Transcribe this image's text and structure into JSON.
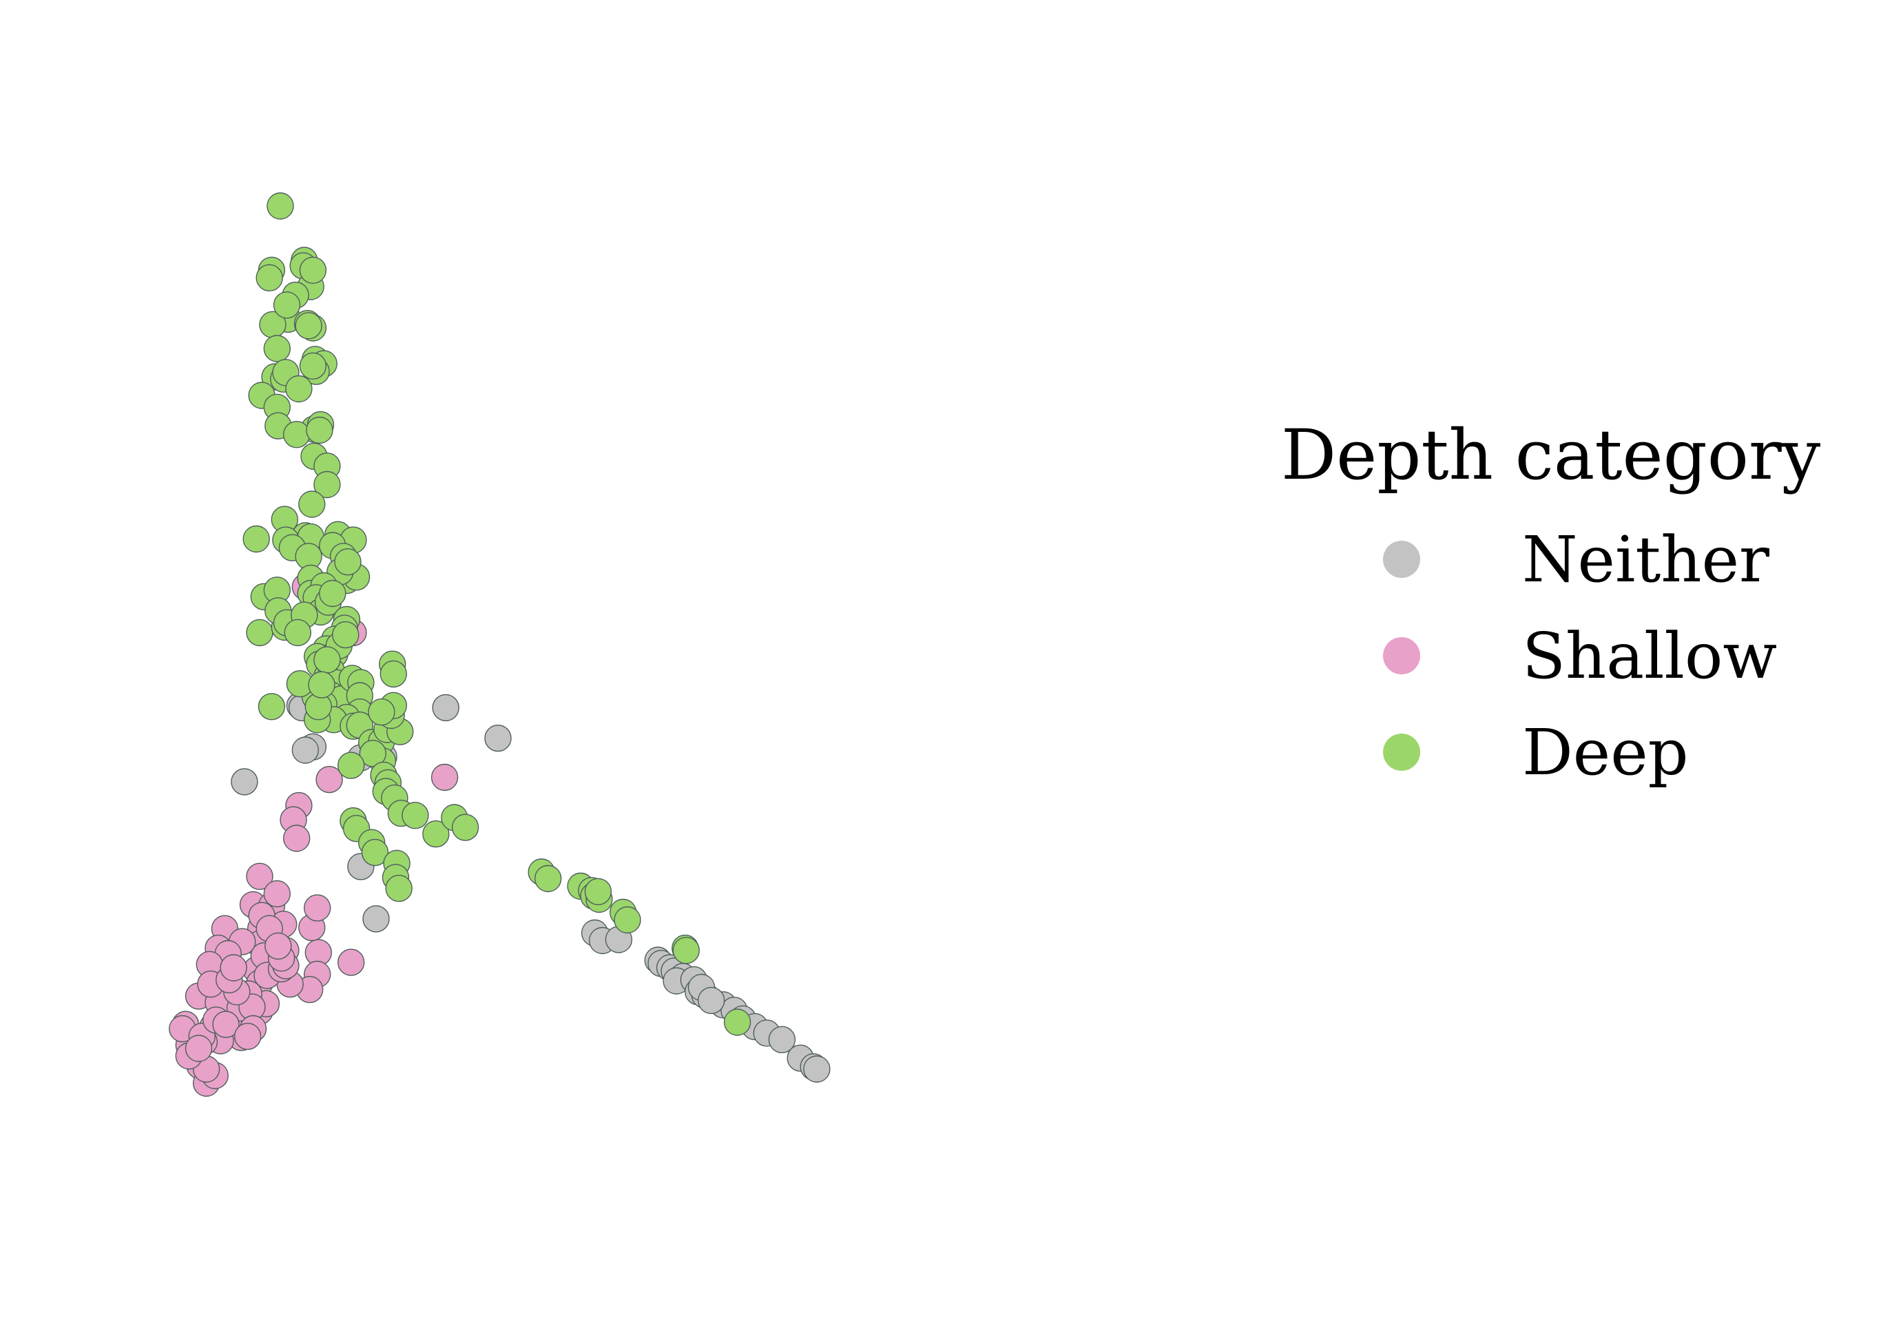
{
  "chart_data": {
    "type": "scatter",
    "title": "",
    "xlabel": "",
    "ylabel": "",
    "axes_visible": false,
    "grid": false,
    "xlim": [
      0,
      1000
    ],
    "ylim": [
      0,
      1000
    ],
    "legend": {
      "title": "Depth category",
      "placement": "center-right",
      "entries": [
        {
          "key": "neither",
          "label": "Neither",
          "color": "#c3c3c3"
        },
        {
          "key": "shallow",
          "label": "Shallow",
          "color": "#e8a1c8"
        },
        {
          "key": "deep",
          "label": "Deep",
          "color": "#9bd66a"
        }
      ]
    },
    "marker_edge_color": "#4d5e5b",
    "series": [
      {
        "key": "neither",
        "name": "Neither",
        "color": "#c3c3c3",
        "points": [
          [
            168,
            453
          ],
          [
            170,
            451
          ],
          [
            180,
            415
          ],
          [
            173,
            412
          ],
          [
            117,
            383
          ],
          [
            224,
            405
          ],
          [
            245,
            406
          ],
          [
            302,
            451
          ],
          [
            350,
            423
          ],
          [
            224,
            305
          ],
          [
            238,
            257
          ],
          [
            439,
            244
          ],
          [
            446,
            237
          ],
          [
            461,
            238
          ],
          [
            497,
            219
          ],
          [
            500,
            216
          ],
          [
            508,
            212
          ],
          [
            512,
            209
          ],
          [
            520,
            204
          ],
          [
            514,
            200
          ],
          [
            530,
            201
          ],
          [
            534,
            190
          ],
          [
            540,
            187
          ],
          [
            557,
            178
          ],
          [
            567,
            173
          ],
          [
            575,
            165
          ],
          [
            586,
            158
          ],
          [
            597,
            152
          ],
          [
            611,
            146
          ],
          [
            628,
            129
          ],
          [
            640,
            121
          ],
          [
            643,
            119
          ],
          [
            537,
            194
          ],
          [
            546,
            182
          ]
        ]
      },
      {
        "key": "shallow",
        "name": "Shallow",
        "color": "#e8a1c8",
        "points": [
          [
            173,
            562
          ],
          [
            217,
            520
          ],
          [
            167,
            361
          ],
          [
            195,
            385
          ],
          [
            301,
            387
          ],
          [
            162,
            348
          ],
          [
            165,
            331
          ],
          [
            131,
            296
          ],
          [
            125,
            270
          ],
          [
            142,
            269
          ],
          [
            153,
            252
          ],
          [
            132,
            248
          ],
          [
            131,
            234
          ],
          [
            155,
            228
          ],
          [
            185,
            226
          ],
          [
            184,
            206
          ],
          [
            177,
            192
          ],
          [
            159,
            197
          ],
          [
            133,
            260
          ],
          [
            128,
            210
          ],
          [
            131,
            198
          ],
          [
            135,
            223
          ],
          [
            138,
            205
          ],
          [
            151,
            211
          ],
          [
            155,
            214
          ],
          [
            151,
            221
          ],
          [
            140,
            248
          ],
          [
            148,
            232
          ],
          [
            99,
            248
          ],
          [
            115,
            236
          ],
          [
            93,
            230
          ],
          [
            102,
            225
          ],
          [
            85,
            215
          ],
          [
            75,
            186
          ],
          [
            63,
            160
          ],
          [
            88,
            158
          ],
          [
            96,
            160
          ],
          [
            106,
            164
          ],
          [
            109,
            176
          ],
          [
            115,
            182
          ],
          [
            131,
            172
          ],
          [
            137,
            179
          ],
          [
            121,
            161
          ],
          [
            114,
            148
          ],
          [
            95,
            145
          ],
          [
            80,
            144
          ],
          [
            66,
            141
          ],
          [
            60,
            156
          ],
          [
            78,
            149
          ],
          [
            76,
            122
          ],
          [
            82,
            106
          ],
          [
            93,
            180
          ],
          [
            117,
            164
          ],
          [
            86,
            197
          ],
          [
            113,
            175
          ],
          [
            121,
            188
          ],
          [
            124,
            176
          ],
          [
            110,
            190
          ],
          [
            103,
            201
          ],
          [
            107,
            212
          ],
          [
            147,
            280
          ],
          [
            179,
            249
          ],
          [
            184,
            267
          ],
          [
            215,
            217
          ],
          [
            91,
            164
          ],
          [
            100,
            160
          ],
          [
            90,
            113
          ],
          [
            82,
            119
          ],
          [
            66,
            131
          ],
          [
            125,
            156
          ],
          [
            120,
            149
          ],
          [
            75,
            138
          ]
        ]
      },
      {
        "key": "deep",
        "name": "Deep",
        "color": "#9bd66a",
        "points": [
          [
            150,
            912
          ],
          [
            172,
            862
          ],
          [
            171,
            857
          ],
          [
            142,
            853
          ],
          [
            140,
            846
          ],
          [
            178,
            838
          ],
          [
            164,
            830
          ],
          [
            157,
            808
          ],
          [
            143,
            803
          ],
          [
            175,
            804
          ],
          [
            156,
            821
          ],
          [
            180,
            800
          ],
          [
            176,
            802
          ],
          [
            180,
            853
          ],
          [
            147,
            781
          ],
          [
            182,
            771
          ],
          [
            190,
            767
          ],
          [
            183,
            760
          ],
          [
            145,
            755
          ],
          [
            153,
            753
          ],
          [
            155,
            759
          ],
          [
            180,
            765
          ],
          [
            167,
            744
          ],
          [
            133,
            738
          ],
          [
            147,
            727
          ],
          [
            181,
            707
          ],
          [
            187,
            711
          ],
          [
            148,
            710
          ],
          [
            165,
            702
          ],
          [
            186,
            706
          ],
          [
            181,
            682
          ],
          [
            193,
            673
          ],
          [
            193,
            656
          ],
          [
            179,
            638
          ],
          [
            154,
            624
          ],
          [
            173,
            609
          ],
          [
            178,
            608
          ],
          [
            155,
            605
          ],
          [
            203,
            610
          ],
          [
            161,
            598
          ],
          [
            176,
            590
          ],
          [
            178,
            570
          ],
          [
            178,
            556
          ],
          [
            128,
            606
          ],
          [
            135,
            553
          ],
          [
            147,
            559
          ],
          [
            131,
            520
          ],
          [
            154,
            525
          ],
          [
            217,
            605
          ],
          [
            198,
            600
          ],
          [
            208,
            590
          ],
          [
            211,
            568
          ],
          [
            220,
            571
          ],
          [
            205,
            576
          ],
          [
            190,
            563
          ],
          [
            183,
            552
          ],
          [
            187,
            539
          ],
          [
            194,
            548
          ],
          [
            198,
            556
          ],
          [
            211,
            532
          ],
          [
            209,
            524
          ],
          [
            200,
            514
          ],
          [
            192,
            505
          ],
          [
            184,
            498
          ],
          [
            186,
            491
          ],
          [
            200,
            500
          ],
          [
            204,
            508
          ],
          [
            210,
            518
          ],
          [
            193,
            480
          ],
          [
            197,
            485
          ],
          [
            201,
            474
          ],
          [
            196,
            463
          ],
          [
            206,
            459
          ],
          [
            216,
            478
          ],
          [
            224,
            474
          ],
          [
            223,
            462
          ],
          [
            223,
            447
          ],
          [
            211,
            442
          ],
          [
            253,
            491
          ],
          [
            254,
            482
          ],
          [
            182,
            461
          ],
          [
            190,
            454
          ],
          [
            199,
            440
          ],
          [
            184,
            440
          ],
          [
            185,
            452
          ],
          [
            217,
            434
          ],
          [
            223,
            435
          ],
          [
            234,
            419
          ],
          [
            243,
            420
          ],
          [
            248,
            431
          ],
          [
            260,
            429
          ],
          [
            252,
            444
          ],
          [
            254,
            453
          ],
          [
            243,
            447
          ],
          [
            244,
            402
          ],
          [
            235,
            409
          ],
          [
            245,
            389
          ],
          [
            249,
            382
          ],
          [
            247,
            374
          ],
          [
            255,
            368
          ],
          [
            261,
            354
          ],
          [
            274,
            352
          ],
          [
            293,
            335
          ],
          [
            310,
            350
          ],
          [
            320,
            341
          ],
          [
            215,
            398
          ],
          [
            217,
            347
          ],
          [
            220,
            340
          ],
          [
            234,
            327
          ],
          [
            237,
            318
          ],
          [
            257,
            308
          ],
          [
            256,
            295
          ],
          [
            259,
            285
          ],
          [
            390,
            300
          ],
          [
            396,
            294
          ],
          [
            426,
            287
          ],
          [
            436,
            283
          ],
          [
            438,
            278
          ],
          [
            443,
            275
          ],
          [
            465,
            263
          ],
          [
            469,
            256
          ],
          [
            522,
            230
          ],
          [
            523,
            228
          ],
          [
            570,
            162
          ],
          [
            442,
            282
          ],
          [
            148,
            540
          ],
          [
            156,
            529
          ],
          [
            172,
            536
          ],
          [
            166,
            520
          ],
          [
            142,
            452
          ],
          [
            168,
            473
          ],
          [
            193,
            495
          ],
          [
            188,
            472
          ],
          [
            212,
            585
          ]
        ]
      }
    ]
  }
}
